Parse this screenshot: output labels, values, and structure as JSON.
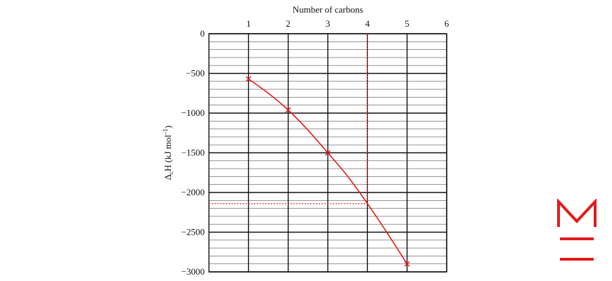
{
  "chart_data": {
    "type": "line",
    "xlabel": "Number of carbons",
    "ylabel": "Δ",
    "ylabel_sub": "c",
    "ylabel_rest": "H (kJ mol",
    "ylabel_sup": "–1",
    "ylabel_close": ")",
    "xlim": [
      0,
      6
    ],
    "ylim": [
      -3000,
      0
    ],
    "x_ticks": [
      "1",
      "2",
      "3",
      "4",
      "5",
      "6"
    ],
    "y_ticks": [
      "0",
      "−500",
      "−1000",
      "−1500",
      "−2000",
      "−2500",
      "−3000"
    ],
    "x_tick_values": [
      1,
      2,
      3,
      4,
      5,
      6
    ],
    "y_tick_values": [
      0,
      -500,
      -1000,
      -1500,
      -2000,
      -2500,
      -3000
    ],
    "grid": true,
    "x_axis_position": "top",
    "series": [
      {
        "color": "#e21b1b",
        "marker": "x",
        "x": [
          1,
          2,
          3,
          5
        ],
        "y": [
          -570,
          -960,
          -1500,
          -2900
        ]
      }
    ],
    "curve_points": [
      [
        1,
        -570
      ],
      [
        1.5,
        -750
      ],
      [
        2,
        -960
      ],
      [
        2.5,
        -1215
      ],
      [
        3,
        -1500
      ],
      [
        3.5,
        -1795
      ],
      [
        4,
        -2140
      ],
      [
        4.5,
        -2510
      ],
      [
        5,
        -2900
      ]
    ],
    "annotation": {
      "x": 4,
      "y": -2140,
      "style": "dotted",
      "color": "#e21b1b"
    }
  },
  "logo": {
    "name": "M-logo",
    "color": "#e21b1b"
  }
}
